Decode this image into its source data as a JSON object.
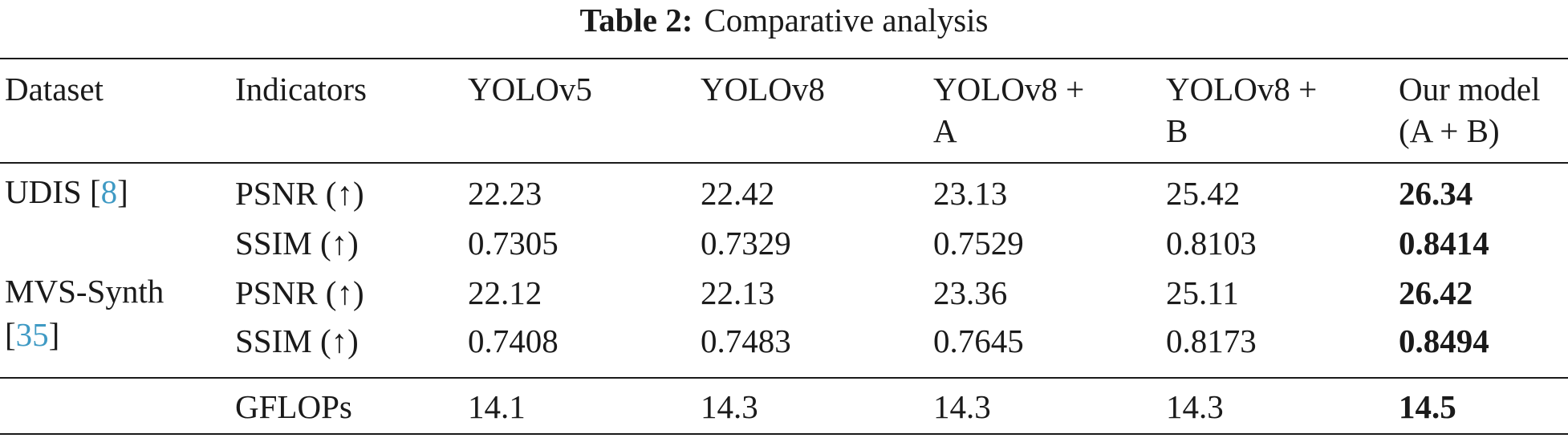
{
  "caption": {
    "label": "Table 2:",
    "text": "Comparative analysis"
  },
  "columns": [
    "Dataset",
    "Indicators",
    "YOLOv5",
    "YOLOv8",
    [
      "YOLOv8 +",
      "A"
    ],
    [
      "YOLOv8 +",
      "B"
    ],
    [
      "Our model",
      "(A + B)"
    ]
  ],
  "rows": [
    {
      "dataset": "UDIS [",
      "ref": "8",
      "dataset_end": "]",
      "indicator": "PSNR (↑)",
      "values": [
        "22.23",
        "22.42",
        "23.13",
        "25.42"
      ],
      "best": "26.34"
    },
    {
      "indicator": "SSIM (↑)",
      "values": [
        "0.7305",
        "0.7329",
        "0.7529",
        "0.8103"
      ],
      "best": "0.8414"
    },
    {
      "dataset_line1": "MVS-Synth",
      "dataset_line2_pre": "[",
      "ref": "35",
      "dataset_line2_post": "]",
      "indicator": "PSNR (↑)",
      "values": [
        "22.12",
        "22.13",
        "23.36",
        "25.11"
      ],
      "best": "26.42"
    },
    {
      "indicator": "SSIM (↑)",
      "values": [
        "0.7408",
        "0.7483",
        "0.7645",
        "0.8173"
      ],
      "best": "0.8494"
    }
  ],
  "footer": {
    "indicator": "GFLOPs",
    "values": [
      "14.1",
      "14.3",
      "14.3",
      "14.3"
    ],
    "best": "14.5"
  }
}
